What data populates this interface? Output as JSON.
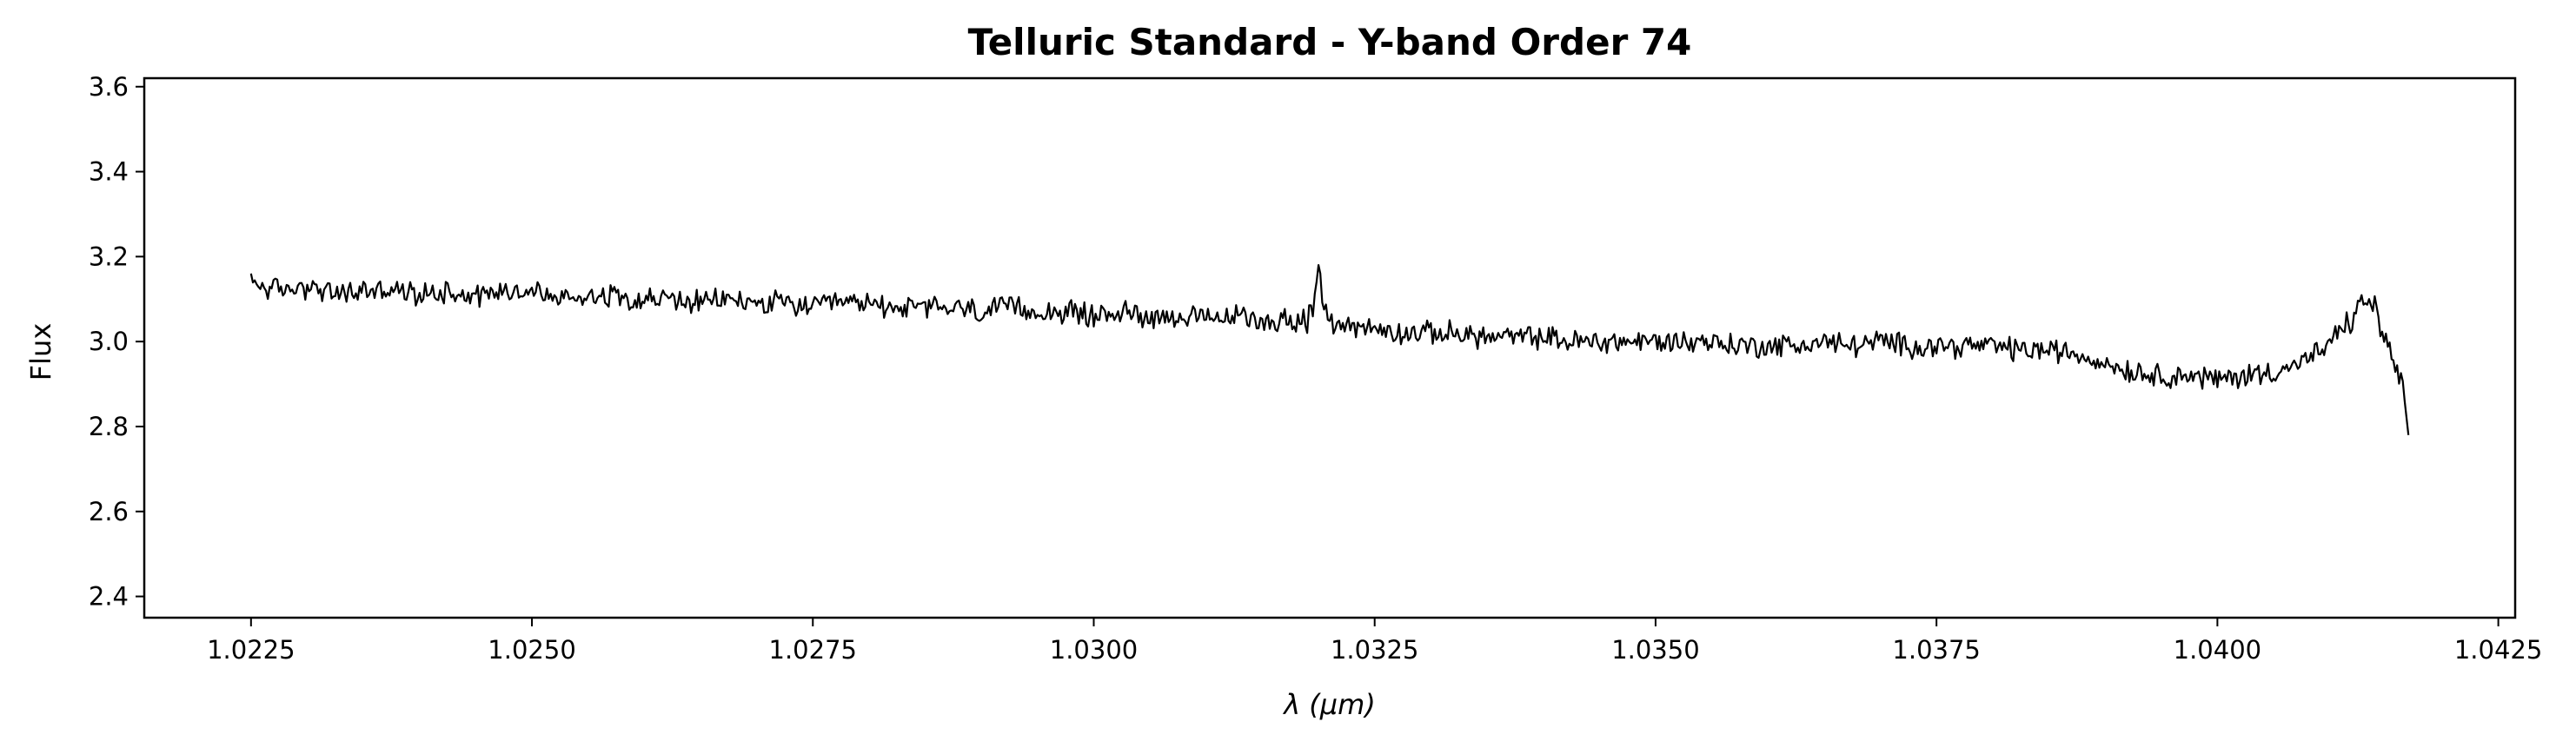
{
  "chart_data": {
    "type": "line",
    "title": "Telluric Standard - Y-band Order 74",
    "xlabel": "λ (μm)",
    "ylabel": "Flux",
    "xlim": [
      1.02155,
      1.04265
    ],
    "ylim": [
      2.35,
      3.62
    ],
    "xticks": [
      "1.0225",
      "1.0250",
      "1.0275",
      "1.0300",
      "1.0325",
      "1.0350",
      "1.0375",
      "1.0400",
      "1.0425"
    ],
    "yticks": [
      "2.4",
      "2.6",
      "2.8",
      "3.0",
      "3.2",
      "3.4",
      "3.6"
    ],
    "grid": false,
    "line_color": "#000000",
    "series": [
      {
        "x": [
          1.0225,
          1.02275,
          1.023,
          1.02325,
          1.0235,
          1.02375,
          1.024,
          1.02425,
          1.0245,
          1.02475,
          1.025,
          1.02525,
          1.0255,
          1.02575,
          1.026,
          1.02625,
          1.0265,
          1.02675,
          1.027,
          1.02725,
          1.0275,
          1.02775,
          1.028,
          1.02825,
          1.0285,
          1.02875,
          1.029,
          1.02925,
          1.0295,
          1.02975,
          1.03,
          1.03025,
          1.0305,
          1.03075,
          1.031,
          1.03125,
          1.0315,
          1.03175,
          1.0319,
          1.03195,
          1.032,
          1.03205,
          1.0321,
          1.0322,
          1.0323,
          1.0324,
          1.0325,
          1.03275,
          1.033,
          1.03325,
          1.0335,
          1.03375,
          1.034,
          1.03425,
          1.0345,
          1.03475,
          1.035,
          1.03525,
          1.0355,
          1.03575,
          1.036,
          1.03625,
          1.0365,
          1.03675,
          1.037,
          1.03725,
          1.0375,
          1.03775,
          1.038,
          1.03825,
          1.0385,
          1.03875,
          1.039,
          1.03925,
          1.0395,
          1.03975,
          1.04,
          1.04025,
          1.0405,
          1.04075,
          1.041,
          1.0411,
          1.0412,
          1.0413,
          1.0414,
          1.0415,
          1.0416,
          1.04165,
          1.0417
        ],
        "y": [
          3.14,
          3.12,
          3.13,
          3.11,
          3.12,
          3.12,
          3.11,
          3.12,
          3.11,
          3.12,
          3.12,
          3.1,
          3.11,
          3.11,
          3.1,
          3.1,
          3.09,
          3.1,
          3.09,
          3.09,
          3.08,
          3.09,
          3.09,
          3.08,
          3.08,
          3.08,
          3.07,
          3.08,
          3.07,
          3.07,
          3.06,
          3.07,
          3.06,
          3.06,
          3.05,
          3.06,
          3.05,
          3.05,
          3.05,
          3.07,
          3.16,
          3.08,
          3.05,
          3.04,
          3.04,
          3.03,
          3.03,
          3.02,
          3.02,
          3.02,
          3.01,
          3.01,
          3.01,
          3.0,
          3.0,
          3.0,
          3.0,
          3.0,
          3.0,
          2.99,
          2.99,
          2.99,
          3.0,
          2.99,
          3.0,
          2.99,
          2.99,
          2.99,
          2.99,
          2.98,
          2.98,
          2.97,
          2.95,
          2.93,
          2.92,
          2.92,
          2.91,
          2.92,
          2.93,
          2.95,
          2.99,
          3.03,
          3.05,
          3.1,
          3.08,
          3.0,
          2.93,
          2.89,
          2.78
        ]
      }
    ]
  }
}
